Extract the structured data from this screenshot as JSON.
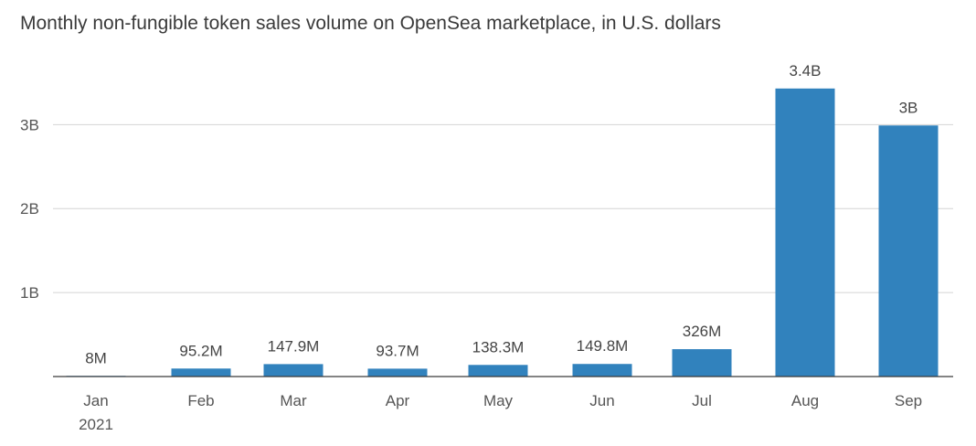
{
  "chart_data": {
    "type": "bar",
    "title": "Monthly non-fungible token sales volume on OpenSea marketplace, in U.S. dollars",
    "categories": [
      "Jan",
      "Feb",
      "Mar",
      "Apr",
      "May",
      "Jun",
      "Jul",
      "Aug",
      "Sep"
    ],
    "category_sublabels": [
      "2021",
      "",
      "",
      "",
      "",
      "",
      "",
      "",
      ""
    ],
    "values": [
      8000000,
      95200000,
      147900000,
      93700000,
      138300000,
      149800000,
      326000000,
      3430000000,
      2990000000
    ],
    "data_labels": [
      "8M",
      "95.2M",
      "147.9M",
      "93.7M",
      "138.3M",
      "149.8M",
      "326M",
      "3.4B",
      "3B"
    ],
    "yticks": [
      1000000000,
      2000000000,
      3000000000
    ],
    "ytick_labels": [
      "1B",
      "2B",
      "3B"
    ],
    "ylim": [
      0,
      3450000000
    ],
    "xlabel": "",
    "ylabel": "",
    "grid": true,
    "legend": "none",
    "colors": {
      "bar": "#3182bd"
    }
  }
}
